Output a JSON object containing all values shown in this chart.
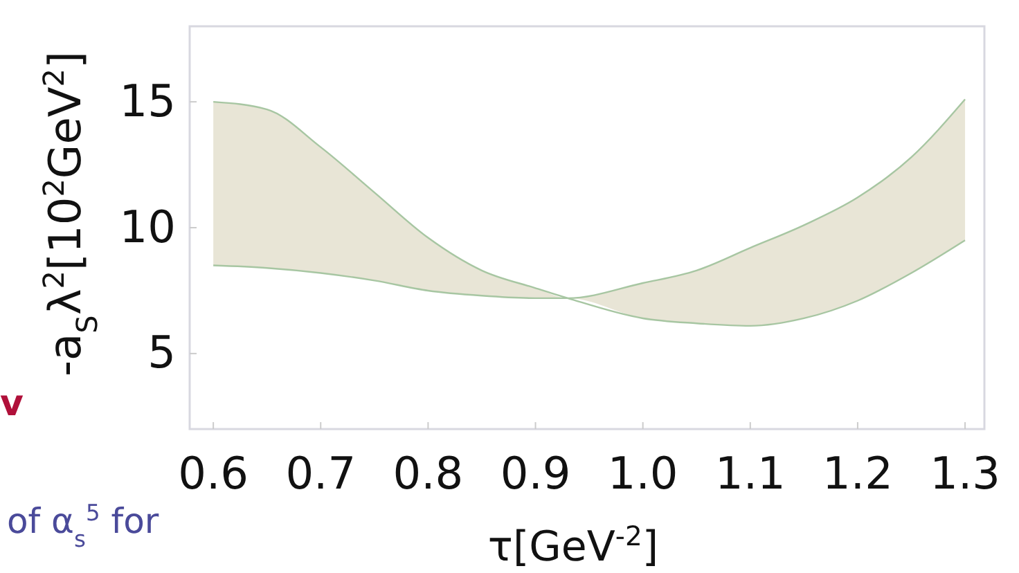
{
  "chart_data": {
    "type": "line",
    "xlabel": "τ[GeV$^{-2}$]",
    "ylabel": "-a$_{S}$λ$^{2}$[10$^{2}$GeV$^{2}$]",
    "x": [
      0.6,
      0.65,
      0.7,
      0.75,
      0.8,
      0.85,
      0.9,
      0.93,
      1.0,
      1.05,
      1.1,
      1.15,
      1.2,
      1.25,
      1.3
    ],
    "series": [
      {
        "color": "#a7c6a2",
        "values": [
          15,
          14.7,
          13.2,
          11.4,
          9.6,
          8.3,
          7.6,
          7.2,
          6.4,
          6.2,
          6.1,
          6.4,
          7.1,
          8.2,
          9.5
        ],
        "lower": [
          8.5,
          8.4,
          8.2,
          7.9,
          7.5,
          7.3,
          7.2,
          7.2,
          6.4,
          6.2,
          6.1,
          6.4,
          7.1,
          8.2,
          9.5
        ],
        "upper": [
          15,
          14.7,
          13.2,
          11.4,
          9.6,
          8.3,
          7.6,
          7.2,
          7.8,
          8.3,
          9.2,
          10.1,
          11.2,
          12.8,
          15.1
        ]
      },
      {
        "color": "#a7c6a2",
        "values": [
          8.5,
          8.4,
          8.2,
          7.9,
          7.5,
          7.3,
          7.2,
          7.2,
          7.8,
          8.3,
          9.2,
          10.1,
          11.2,
          12.8,
          15.1
        ]
      }
    ],
    "xlim": [
      0.578,
      1.318
    ],
    "ylim": [
      2,
      18
    ],
    "xticks": [
      0.6,
      0.7,
      0.8,
      0.9,
      {
        "value": 1,
        "label": "1.0"
      },
      1.1,
      1.2,
      1.3
    ],
    "yticks": [
      5,
      10,
      15
    ],
    "grid": false,
    "annotations": [
      "v",
      "of α$_{s}$$^{5}$ for"
    ]
  }
}
